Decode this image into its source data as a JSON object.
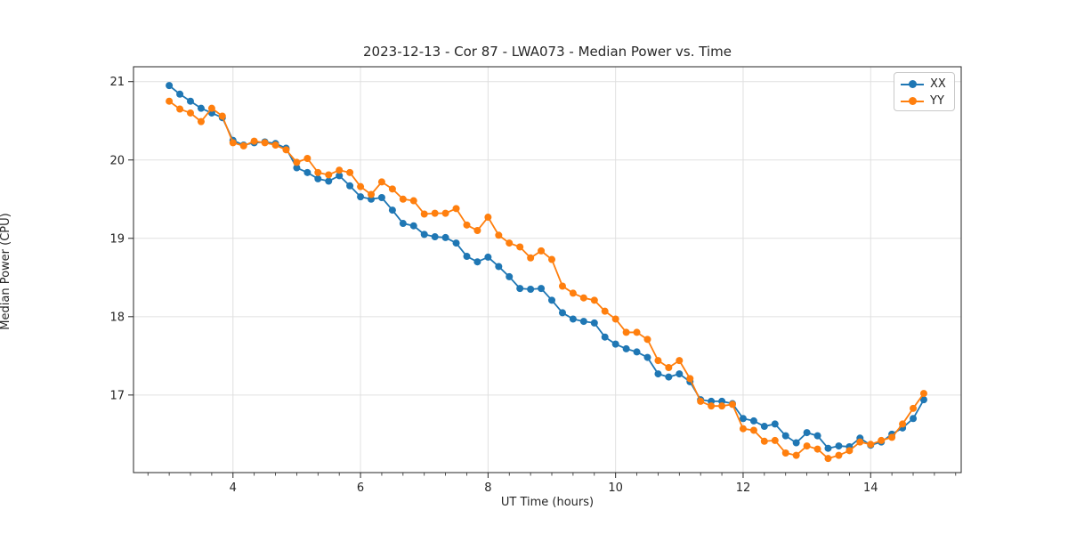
{
  "figure": {
    "background": "#ffffff",
    "spine_color": "#262626",
    "grid_color": "#e0e0e0",
    "text_color": "#262626"
  },
  "chart_data": {
    "type": "line",
    "title": "2023-12-13 - Cor 87 - LWA073 - Median Power vs. Time",
    "xlabel": "UT Time (hours)",
    "ylabel": "Median Power (CPU)",
    "xlim": [
      2.44,
      15.42
    ],
    "ylim": [
      16.01,
      21.19
    ],
    "xticks": [
      4,
      6,
      8,
      10,
      12,
      14
    ],
    "yticks": [
      17,
      18,
      19,
      20,
      21
    ],
    "x_minor_step": 0.33333,
    "grid": true,
    "legend_position": "upper right",
    "marker": "circle",
    "marker_radius": 4,
    "line_width": 1.8,
    "x": [
      3.0,
      3.167,
      3.333,
      3.5,
      3.667,
      3.833,
      4.0,
      4.167,
      4.333,
      4.5,
      4.667,
      4.833,
      5.0,
      5.167,
      5.333,
      5.5,
      5.667,
      5.833,
      6.0,
      6.167,
      6.333,
      6.5,
      6.667,
      6.833,
      7.0,
      7.167,
      7.333,
      7.5,
      7.667,
      7.833,
      8.0,
      8.167,
      8.333,
      8.5,
      8.667,
      8.833,
      9.0,
      9.167,
      9.333,
      9.5,
      9.667,
      9.833,
      10.0,
      10.167,
      10.333,
      10.5,
      10.667,
      10.833,
      11.0,
      11.167,
      11.333,
      11.5,
      11.667,
      11.833,
      12.0,
      12.167,
      12.333,
      12.5,
      12.667,
      12.833,
      13.0,
      13.167,
      13.333,
      13.5,
      13.667,
      13.833,
      14.0,
      14.167,
      14.333,
      14.5,
      14.667,
      14.833
    ],
    "series": [
      {
        "name": "XX",
        "color": "#1f77b4",
        "values": [
          20.95,
          20.84,
          20.75,
          20.66,
          20.6,
          20.54,
          20.25,
          20.19,
          20.22,
          20.23,
          20.21,
          20.15,
          19.9,
          19.84,
          19.76,
          19.73,
          19.8,
          19.67,
          19.53,
          19.5,
          19.52,
          19.36,
          19.19,
          19.16,
          19.05,
          19.02,
          19.01,
          18.94,
          18.77,
          18.7,
          18.76,
          18.64,
          18.51,
          18.36,
          18.35,
          18.36,
          18.21,
          18.05,
          17.97,
          17.94,
          17.92,
          17.74,
          17.65,
          17.59,
          17.55,
          17.48,
          17.27,
          17.23,
          17.27,
          17.17,
          16.94,
          16.92,
          16.92,
          16.89,
          16.7,
          16.67,
          16.6,
          16.63,
          16.48,
          16.39,
          16.52,
          16.48,
          16.32,
          16.35,
          16.34,
          16.45,
          16.36,
          16.4,
          16.5,
          16.58,
          16.7,
          16.94
        ]
      },
      {
        "name": "YY",
        "color": "#ff7f0e",
        "values": [
          20.75,
          20.65,
          20.6,
          20.49,
          20.66,
          20.56,
          20.22,
          20.18,
          20.24,
          20.22,
          20.19,
          20.13,
          19.97,
          20.02,
          19.84,
          19.81,
          19.87,
          19.84,
          19.66,
          19.56,
          19.72,
          19.63,
          19.5,
          19.48,
          19.31,
          19.32,
          19.32,
          19.38,
          19.17,
          19.1,
          19.27,
          19.04,
          18.94,
          18.89,
          18.75,
          18.84,
          18.73,
          18.39,
          18.3,
          18.24,
          18.21,
          18.07,
          17.97,
          17.8,
          17.8,
          17.71,
          17.44,
          17.35,
          17.44,
          17.21,
          16.92,
          16.86,
          16.86,
          16.88,
          16.57,
          16.55,
          16.41,
          16.42,
          16.26,
          16.23,
          16.35,
          16.31,
          16.19,
          16.23,
          16.29,
          16.4,
          16.37,
          16.42,
          16.46,
          16.63,
          16.83,
          17.02
        ]
      }
    ]
  }
}
